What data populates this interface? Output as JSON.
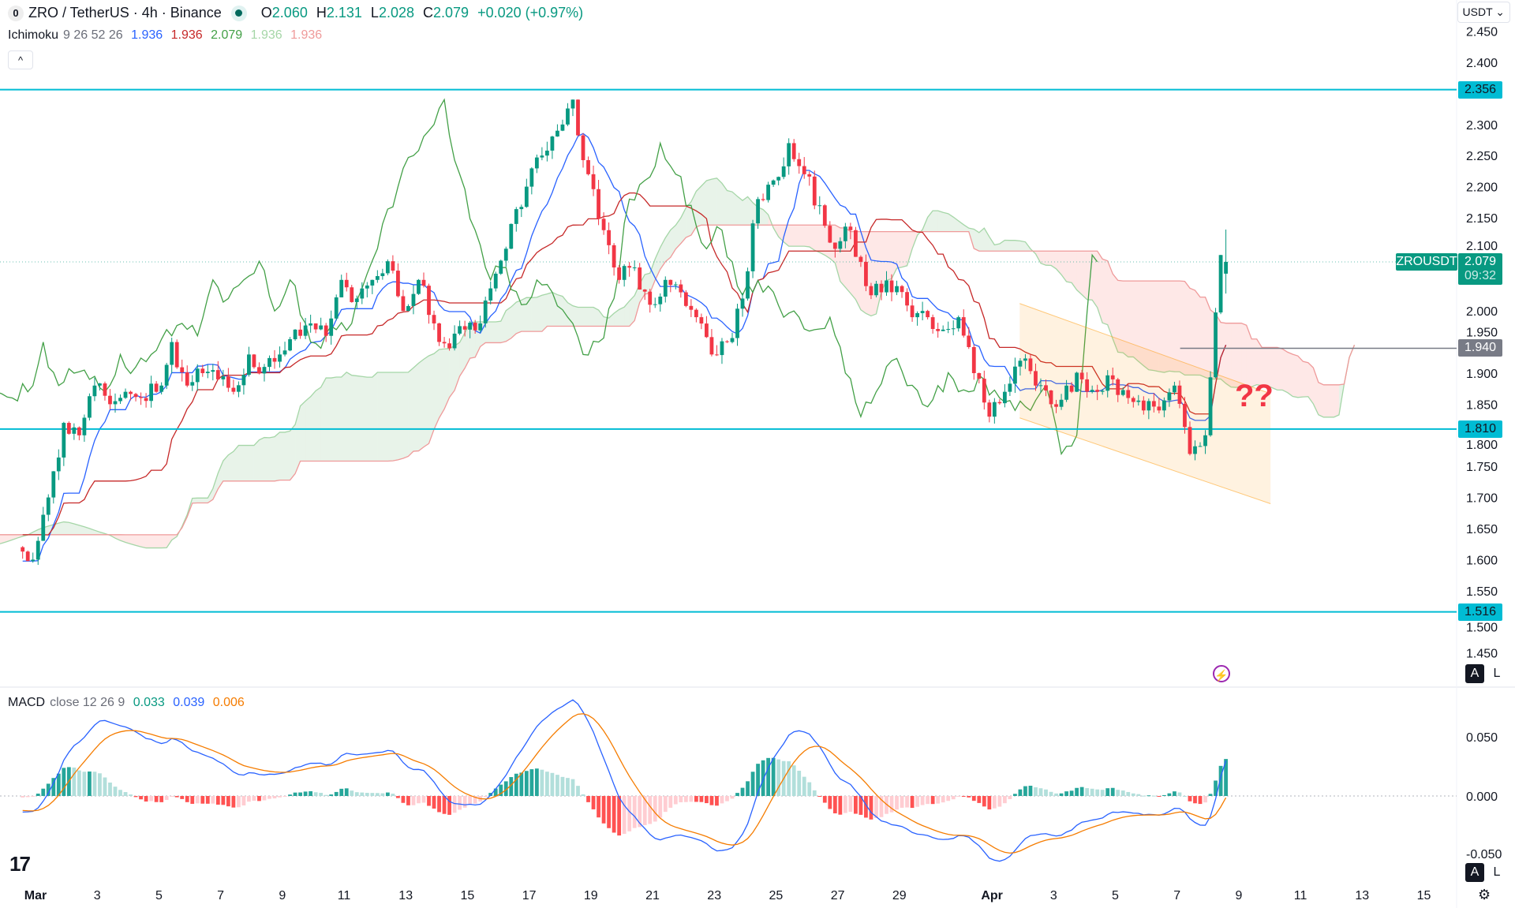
{
  "header": {
    "symbol_icon": "layerzero-logo",
    "title": "ZRO / TetherUS · 4h · Binance",
    "status_icon": "market-open-dot",
    "ohlc": [
      {
        "k": "O",
        "v": "2.060"
      },
      {
        "k": "H",
        "v": "2.131"
      },
      {
        "k": "L",
        "v": "2.028"
      },
      {
        "k": "C",
        "v": "2.079"
      }
    ],
    "change": "+0.020 (+0.97%)",
    "currency": "USDT"
  },
  "ichimoku_legend": {
    "name": "Ichimoku",
    "params": "9 26 52 26",
    "values": [
      "1.936",
      "1.936",
      "2.079",
      "1.936",
      "1.936"
    ],
    "colors": [
      "#2962ff",
      "#c62828",
      "#43a047",
      "#a5d6a7",
      "#ef9a9a"
    ]
  },
  "macd_legend": {
    "name": "MACD",
    "params": "close 12 26 9",
    "values": [
      "0.033",
      "0.039",
      "0.006"
    ],
    "colors": [
      "#089981",
      "#2962ff",
      "#f57c00"
    ]
  },
  "price_axis": {
    "ticks": [
      "2.450",
      "2.400",
      "2.300",
      "2.250",
      "2.200",
      "2.150",
      "2.100",
      "2.000",
      "1.950",
      "1.900",
      "1.850",
      "1.800",
      "1.750",
      "1.700",
      "1.650",
      "1.600",
      "1.550",
      "1.500",
      "1.450"
    ],
    "levels": [
      {
        "value": "2.356",
        "color": "#00bcd4"
      },
      {
        "value": "1.810",
        "color": "#00bcd4"
      },
      {
        "value": "1.516",
        "color": "#00bcd4"
      },
      {
        "value": "1.940",
        "color": "#787b86"
      }
    ],
    "symbol_label": "ZROUSDT",
    "last_price": "2.079",
    "countdown": "09:32"
  },
  "macd_axis": {
    "ticks": [
      "0.050",
      "0.000",
      "-0.050"
    ]
  },
  "time_axis": {
    "labels": [
      {
        "t": "Mar",
        "day": 0
      },
      {
        "t": "3",
        "day": 2
      },
      {
        "t": "5",
        "day": 4
      },
      {
        "t": "7",
        "day": 6
      },
      {
        "t": "9",
        "day": 8
      },
      {
        "t": "11",
        "day": 10
      },
      {
        "t": "13",
        "day": 12
      },
      {
        "t": "15",
        "day": 14
      },
      {
        "t": "17",
        "day": 16
      },
      {
        "t": "19",
        "day": 18
      },
      {
        "t": "21",
        "day": 20
      },
      {
        "t": "23",
        "day": 22
      },
      {
        "t": "25",
        "day": 24
      },
      {
        "t": "27",
        "day": 26
      },
      {
        "t": "29",
        "day": 28
      },
      {
        "t": "Apr",
        "day": 31
      },
      {
        "t": "3",
        "day": 33
      },
      {
        "t": "5",
        "day": 35
      },
      {
        "t": "7",
        "day": 37
      },
      {
        "t": "9",
        "day": 39
      },
      {
        "t": "11",
        "day": 41
      },
      {
        "t": "13",
        "day": 43
      },
      {
        "t": "15",
        "day": 45
      }
    ]
  },
  "annotations": {
    "question_text": "??",
    "question_color": "#f23645",
    "channel": {
      "start": "Apr 1 22:00",
      "end": "Apr 10",
      "upper": [
        2.012,
        1.867
      ],
      "lower": [
        1.828,
        1.69
      ],
      "color": "#ff9800"
    }
  },
  "scale_buttons": {
    "auto": "A",
    "log": "L"
  },
  "chart_data": {
    "type": "candlestick",
    "timeframe": "4h",
    "start": "Feb 28",
    "closes_12h": [
      1.62,
      1.6,
      1.7,
      1.82,
      1.8,
      1.88,
      1.85,
      1.87,
      1.86,
      1.87,
      1.95,
      1.88,
      1.9,
      1.89,
      1.87,
      1.93,
      1.91,
      1.93,
      1.97,
      1.98,
      1.96,
      2.05,
      2.02,
      2.05,
      2.08,
      2.0,
      2.05,
      1.98,
      1.94,
      1.97,
      1.98,
      2.06,
      2.14,
      2.2,
      2.25,
      2.29,
      2.34,
      2.22,
      2.13,
      2.05,
      2.07,
      2.01,
      2.05,
      2.03,
      1.99,
      1.93,
      1.95,
      2.02,
      2.18,
      2.21,
      2.27,
      2.22,
      2.17,
      2.1,
      2.13,
      2.04,
      2.03,
      2.04,
      1.99,
      1.99,
      1.97,
      1.99,
      1.9,
      1.83,
      1.87,
      1.92,
      1.88,
      1.85,
      1.88,
      1.89,
      1.87,
      1.89,
      1.86,
      1.84,
      1.84,
      1.88,
      1.77,
      1.8,
      2.09
    ],
    "last_close": 2.079,
    "up_color": "#089981",
    "down_color": "#f23645",
    "ylim": [
      1.45,
      2.45
    ],
    "indicators": [
      "Ichimoku 9 26 52 26",
      "MACD 12 26 9"
    ]
  }
}
